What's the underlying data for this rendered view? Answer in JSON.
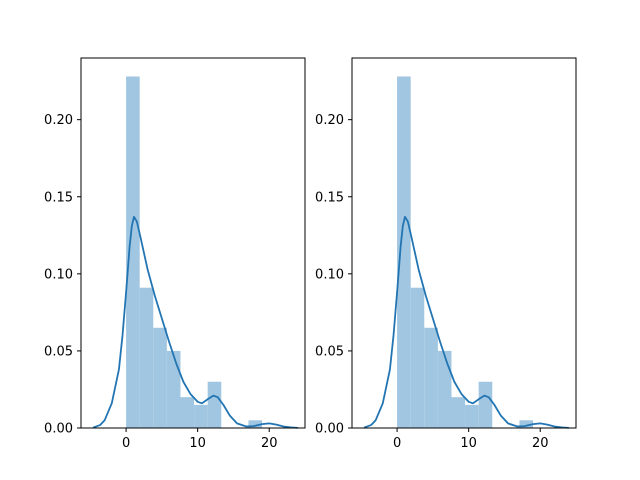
{
  "chart_data": [
    {
      "type": "bar",
      "overlay": "kde-line",
      "title": "",
      "xlabel": "",
      "ylabel": "",
      "xlim": [
        -6.3,
        25.0
      ],
      "ylim": [
        0,
        0.24
      ],
      "xticks": [
        0,
        10,
        20
      ],
      "yticks": [
        0.0,
        0.05,
        0.1,
        0.15,
        0.2
      ],
      "ytick_labels": [
        "0.00",
        "0.05",
        "0.10",
        "0.15",
        "0.20"
      ],
      "grid": false,
      "legend": "none",
      "colors": {
        "bars": "#a1c6e1",
        "line": "#2275b2",
        "axes": "#000000"
      },
      "histogram": {
        "bin_edges": [
          0,
          1.9,
          3.8,
          5.7,
          7.6,
          9.5,
          11.4,
          13.3,
          15.2,
          17.1,
          19.0,
          20.9
        ],
        "values": [
          0.228,
          0.091,
          0.065,
          0.05,
          0.02,
          0.015,
          0.03,
          0.0,
          0.0,
          0.005,
          0.0
        ]
      },
      "kde": {
        "x": [
          -4.6,
          -3.6,
          -3.0,
          -2.0,
          -1.0,
          -0.5,
          0.0,
          0.5,
          0.8,
          1.1,
          1.5,
          2.0,
          3.0,
          4.0,
          5.0,
          6.0,
          7.0,
          8.0,
          9.0,
          10.0,
          10.6,
          11.5,
          12.2,
          12.8,
          13.6,
          14.5,
          15.5,
          16.8,
          17.8,
          19.0,
          20.0,
          21.0,
          22.0,
          23.0,
          24.0
        ],
        "y": [
          0.0003,
          0.002,
          0.005,
          0.016,
          0.038,
          0.06,
          0.088,
          0.118,
          0.131,
          0.137,
          0.134,
          0.124,
          0.103,
          0.086,
          0.071,
          0.056,
          0.042,
          0.03,
          0.022,
          0.017,
          0.016,
          0.019,
          0.021,
          0.02,
          0.015,
          0.008,
          0.003,
          0.001,
          0.0012,
          0.0025,
          0.003,
          0.0022,
          0.001,
          0.0004,
          0.0001
        ]
      }
    },
    {
      "type": "bar",
      "overlay": "kde-line",
      "title": "",
      "xlabel": "",
      "ylabel": "",
      "xlim": [
        -6.3,
        25.0
      ],
      "ylim": [
        0,
        0.24
      ],
      "xticks": [
        0,
        10,
        20
      ],
      "yticks": [
        0.0,
        0.05,
        0.1,
        0.15,
        0.2
      ],
      "ytick_labels": [
        "0.00",
        "0.05",
        "0.10",
        "0.15",
        "0.20"
      ],
      "grid": false,
      "legend": "none",
      "colors": {
        "bars": "#a1c6e1",
        "line": "#2275b2",
        "axes": "#000000"
      },
      "histogram": {
        "bin_edges": [
          0,
          1.9,
          3.8,
          5.7,
          7.6,
          9.5,
          11.4,
          13.3,
          15.2,
          17.1,
          19.0,
          20.9
        ],
        "values": [
          0.228,
          0.091,
          0.065,
          0.05,
          0.02,
          0.015,
          0.03,
          0.0,
          0.0,
          0.005,
          0.0
        ]
      },
      "kde": {
        "x": [
          -4.6,
          -3.6,
          -3.0,
          -2.0,
          -1.0,
          -0.5,
          0.0,
          0.5,
          0.8,
          1.1,
          1.5,
          2.0,
          3.0,
          4.0,
          5.0,
          6.0,
          7.0,
          8.0,
          9.0,
          10.0,
          10.6,
          11.5,
          12.2,
          12.8,
          13.6,
          14.5,
          15.5,
          16.8,
          17.8,
          19.0,
          20.0,
          21.0,
          22.0,
          23.0,
          24.0
        ],
        "y": [
          0.0003,
          0.002,
          0.005,
          0.016,
          0.038,
          0.06,
          0.088,
          0.118,
          0.131,
          0.137,
          0.134,
          0.124,
          0.103,
          0.086,
          0.071,
          0.056,
          0.042,
          0.03,
          0.022,
          0.017,
          0.016,
          0.019,
          0.021,
          0.02,
          0.015,
          0.008,
          0.003,
          0.001,
          0.0012,
          0.0025,
          0.003,
          0.0022,
          0.001,
          0.0004,
          0.0001
        ]
      }
    }
  ]
}
